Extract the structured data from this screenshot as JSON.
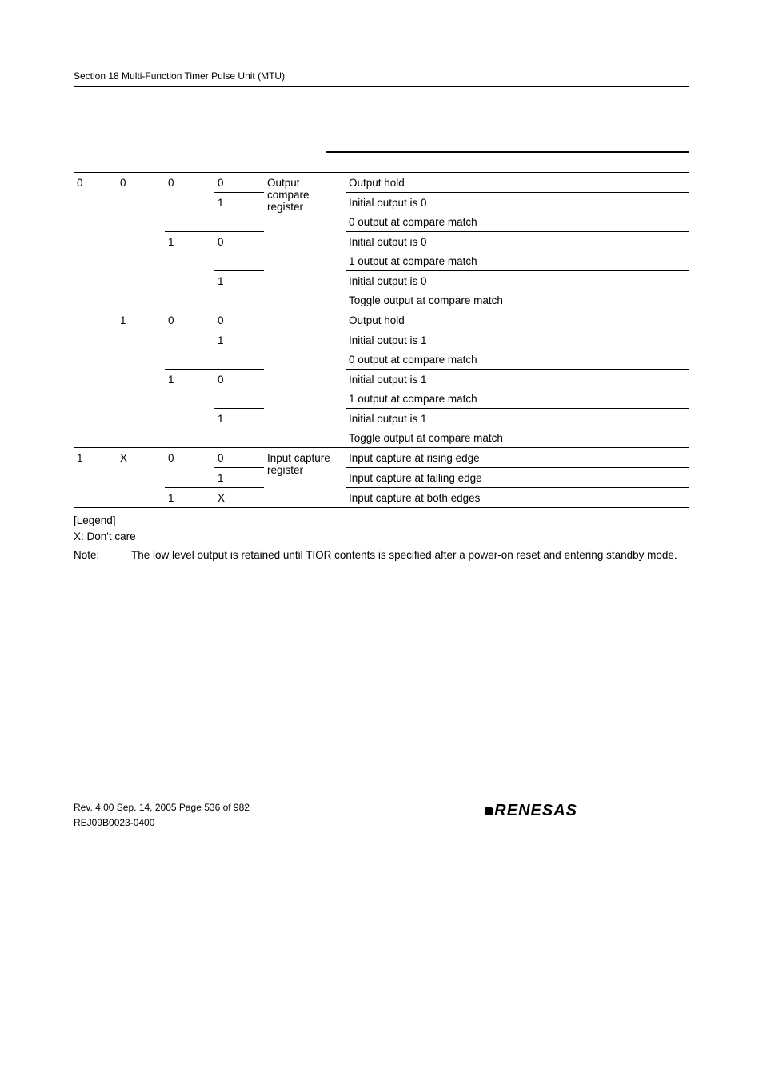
{
  "header": {
    "running": "Section 18   Multi-Function Timer Pulse Unit (MTU)"
  },
  "table": {
    "groups": [
      {
        "b7": "0",
        "b6_groups": [
          {
            "b6": "0",
            "func_label": "Output compare register",
            "b5_groups": [
              {
                "b5": "0",
                "rows": [
                  {
                    "b4": "0",
                    "desc": "Output hold"
                  },
                  {
                    "b4": "1",
                    "desc": "Initial output is 0"
                  },
                  {
                    "b4": "",
                    "desc": "0 output at compare match"
                  }
                ]
              },
              {
                "b5": "1",
                "rows": [
                  {
                    "b4": "0",
                    "desc": "Initial output is 0"
                  },
                  {
                    "b4": "",
                    "desc": "1 output at compare match"
                  },
                  {
                    "b4": "1",
                    "desc": "Initial output is 0"
                  },
                  {
                    "b4": "",
                    "desc": "Toggle output at compare match"
                  }
                ]
              }
            ]
          },
          {
            "b6": "1",
            "b5_groups": [
              {
                "b5": "0",
                "rows": [
                  {
                    "b4": "0",
                    "desc": "Output hold"
                  },
                  {
                    "b4": "1",
                    "desc": "Initial output is 1"
                  },
                  {
                    "b4": "",
                    "desc": "0 output at compare match"
                  }
                ]
              },
              {
                "b5": "1",
                "rows": [
                  {
                    "b4": "0",
                    "desc": "Initial output is 1"
                  },
                  {
                    "b4": "",
                    "desc": "1 output at compare match"
                  },
                  {
                    "b4": "1",
                    "desc": "Initial output is 1"
                  },
                  {
                    "b4": "",
                    "desc": "Toggle output at compare match"
                  }
                ]
              }
            ]
          }
        ]
      },
      {
        "b7": "1",
        "b6_groups": [
          {
            "b6": "X",
            "func_label": "Input capture register",
            "b5_groups": [
              {
                "b5": "0",
                "rows": [
                  {
                    "b4": "0",
                    "desc": "Input capture at rising edge"
                  },
                  {
                    "b4": "1",
                    "desc": "Input capture at falling edge"
                  }
                ]
              },
              {
                "b5": "1",
                "rows": [
                  {
                    "b4": "X",
                    "desc": "Input capture at both edges"
                  }
                ]
              }
            ]
          }
        ]
      }
    ]
  },
  "legend": {
    "heading": "[Legend]",
    "x_line": "X: Don't care",
    "note_label": "Note:",
    "note_body": "The low level output is retained until TIOR contents is specified after a power-on reset and entering standby mode."
  },
  "footer": {
    "line1": "Rev. 4.00  Sep. 14, 2005  Page 536 of 982",
    "line2": "REJ09B0023-0400",
    "logo_text": "RENESAS"
  }
}
